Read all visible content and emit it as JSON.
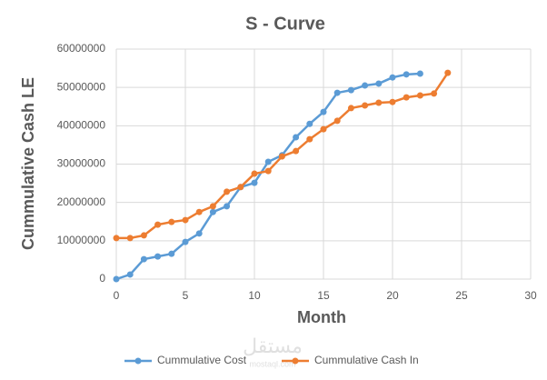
{
  "chart_data": {
    "type": "line",
    "title": "S - Curve",
    "x_label": "Month",
    "y_label": "Cummulative Cash LE",
    "xlim": [
      0,
      30
    ],
    "xticks": [
      0,
      5,
      10,
      15,
      20,
      25,
      30
    ],
    "ylim": [
      0,
      60000000
    ],
    "yticks": [
      0,
      10000000,
      20000000,
      30000000,
      40000000,
      50000000,
      60000000
    ],
    "grid": true,
    "legend": "bottom",
    "series": [
      {
        "name": "Cummulative Cost",
        "color": "#5b9bd5",
        "x": [
          0,
          1,
          2,
          3,
          4,
          5,
          6,
          7,
          8,
          9,
          10,
          11,
          12,
          13,
          14,
          15,
          16,
          17,
          18,
          19,
          20,
          21,
          22
        ],
        "values": [
          0,
          1200000,
          5200000,
          5900000,
          6600000,
          9700000,
          11900000,
          17500000,
          19000000,
          24000000,
          25100000,
          30600000,
          32300000,
          37000000,
          40500000,
          43600000,
          48600000,
          49300000,
          50500000,
          51000000,
          52600000,
          53400000,
          53600000
        ]
      },
      {
        "name": "Cummulative Cash In",
        "color": "#ed7d31",
        "x": [
          0,
          1,
          2,
          3,
          4,
          5,
          6,
          7,
          8,
          9,
          10,
          11,
          12,
          13,
          14,
          15,
          16,
          17,
          18,
          19,
          20,
          21,
          22,
          23,
          24
        ],
        "values": [
          10700000,
          10700000,
          11400000,
          14200000,
          14900000,
          15400000,
          17500000,
          19000000,
          22800000,
          24000000,
          27500000,
          28200000,
          32000000,
          33400000,
          36500000,
          39100000,
          41300000,
          44600000,
          45300000,
          46000000,
          46200000,
          47400000,
          47900000,
          48400000,
          53800000
        ]
      }
    ],
    "watermark": "مستقل",
    "watermark_sub": "mostaql.com"
  }
}
